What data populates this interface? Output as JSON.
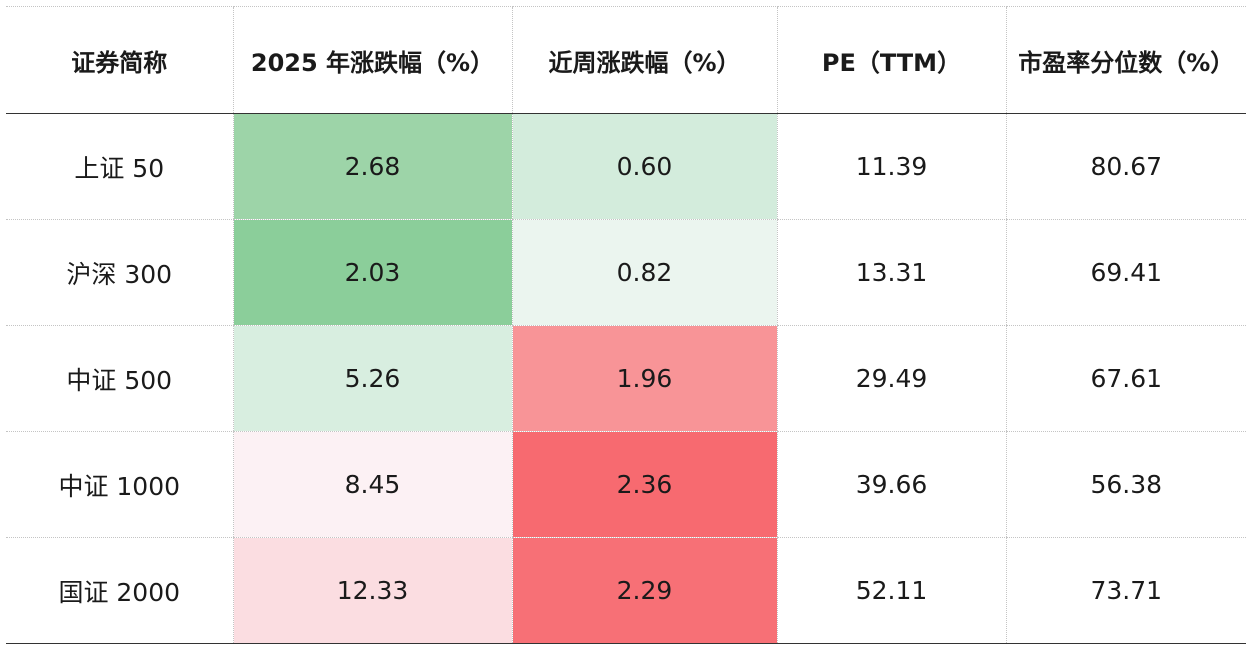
{
  "chart_data": {
    "type": "table",
    "columns": [
      "证券简称",
      "2025 年涨跌幅（%）",
      "近周涨跌幅（%）",
      "PE（TTM）",
      "市盈率分位数（%）"
    ],
    "rows": [
      {
        "name": "上证 50",
        "ytd": "2.68",
        "week": "0.60",
        "pe": "11.39",
        "pct": "80.67",
        "ytd_color": "#9dd4a8",
        "week_color": "#d3ecdc"
      },
      {
        "name": "沪深 300",
        "ytd": "2.03",
        "week": "0.82",
        "pe": "13.31",
        "pct": "69.41",
        "ytd_color": "#8bce9a",
        "week_color": "#ebf5ef"
      },
      {
        "name": "中证 500",
        "ytd": "5.26",
        "week": "1.96",
        "pe": "29.49",
        "pct": "67.61",
        "ytd_color": "#d8eee0",
        "week_color": "#f89497"
      },
      {
        "name": "中证 1000",
        "ytd": "8.45",
        "week": "2.36",
        "pe": "39.66",
        "pct": "56.38",
        "ytd_color": "#fcf1f4",
        "week_color": "#f76a70"
      },
      {
        "name": "国证 2000",
        "ytd": "12.33",
        "week": "2.29",
        "pe": "52.11",
        "pct": "73.71",
        "ytd_color": "#fbdde1",
        "week_color": "#f77076"
      }
    ]
  }
}
